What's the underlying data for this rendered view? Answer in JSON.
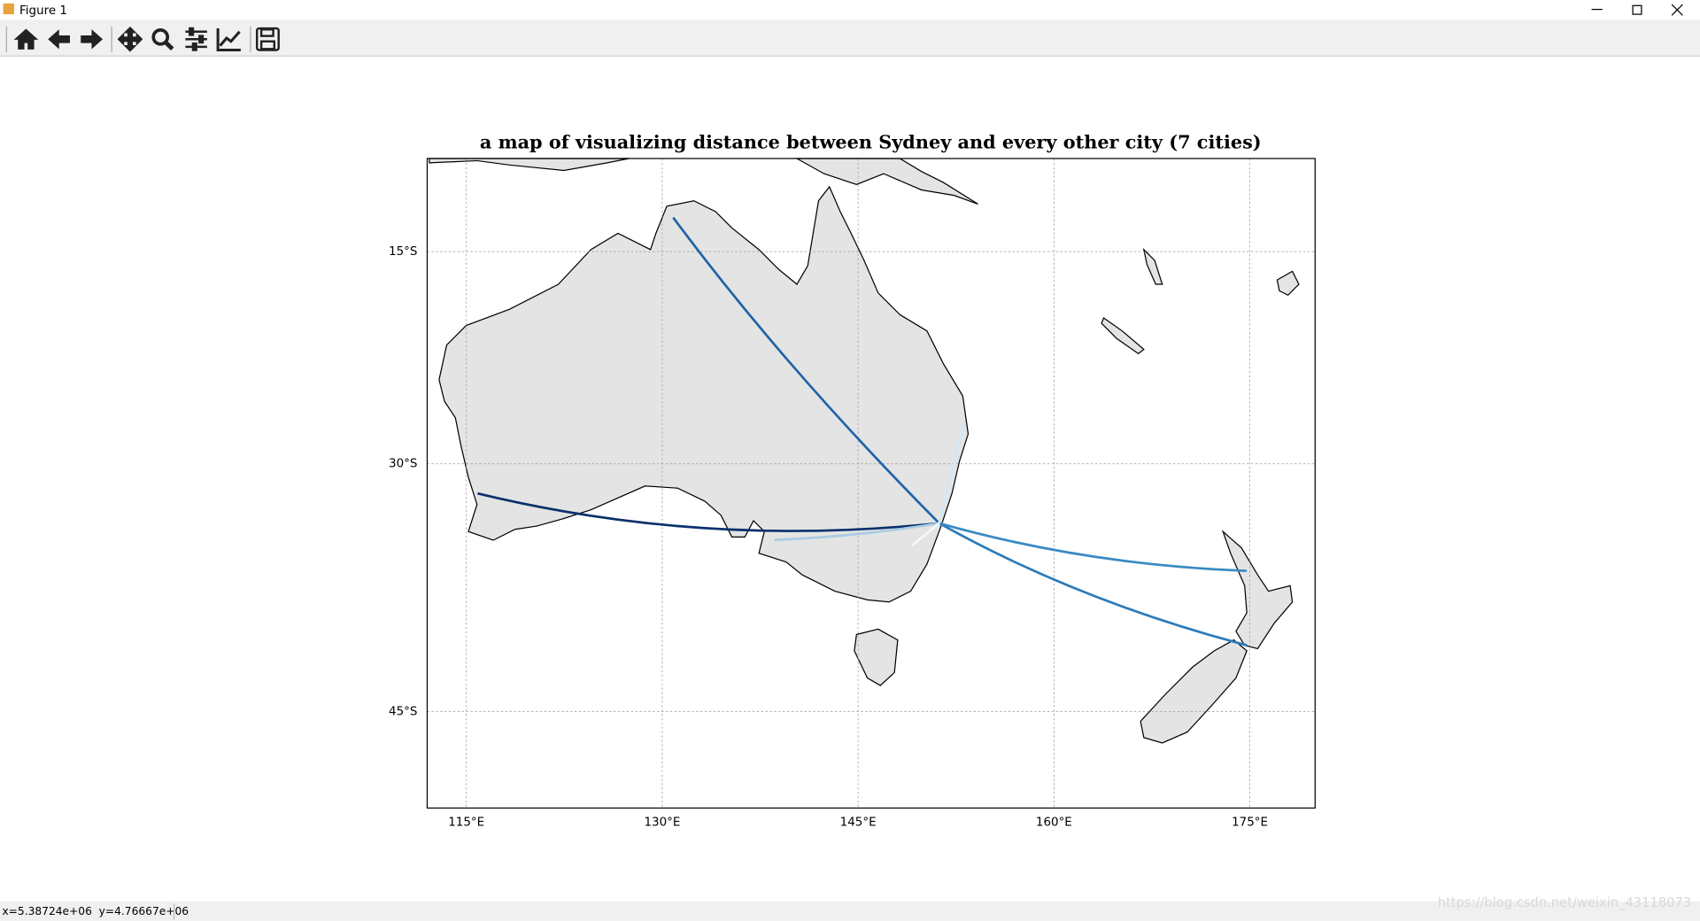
{
  "window_title": "Figure 1",
  "status": "x=5.38724e+06  y=4.76667e+06",
  "watermark": "https://blog.csdn.net/weixin_43118073",
  "chart_data": {
    "type": "map",
    "projection": "mercator",
    "title": "a map of visualizing distance between Sydney and every other city (7 cities)",
    "xlim": [
      112,
      180
    ],
    "ylim": [
      -50,
      -8
    ],
    "xticks": [
      {
        "value": 115,
        "label": "115°E"
      },
      {
        "value": 130,
        "label": "130°E"
      },
      {
        "value": 145,
        "label": "145°E"
      },
      {
        "value": 160,
        "label": "160°E"
      },
      {
        "value": 175,
        "label": "175°E"
      }
    ],
    "yticks": [
      {
        "value": -15,
        "label": "15°S"
      },
      {
        "value": -30,
        "label": "30°S"
      },
      {
        "value": -45,
        "label": "45°S"
      }
    ],
    "grid": true,
    "routes": [
      {
        "color": "#08306b",
        "lon": [
          151.21,
          115.86
        ],
        "lat": [
          -33.87,
          -31.95
        ]
      },
      {
        "color": "#1f63a8",
        "lon": [
          151.21,
          130.84
        ],
        "lat": [
          -33.87,
          -12.46
        ]
      },
      {
        "color": "#2b7bba",
        "lon": [
          151.21,
          174.78
        ],
        "lat": [
          -33.87,
          -41.29
        ]
      },
      {
        "color": "#3a8ac4",
        "lon": [
          151.21,
          174.76
        ],
        "lat": [
          -33.87,
          -36.85
        ]
      },
      {
        "color": "#a9cce3",
        "lon": [
          151.21,
          138.6
        ],
        "lat": [
          -33.87,
          -34.93
        ]
      },
      {
        "color": "#d6e6f4",
        "lon": [
          151.21,
          153.03
        ],
        "lat": [
          -33.87,
          -27.47
        ]
      },
      {
        "color": "#f4f8fc",
        "lon": [
          151.21,
          149.13
        ],
        "lat": [
          -33.87,
          -35.28
        ]
      }
    ]
  }
}
